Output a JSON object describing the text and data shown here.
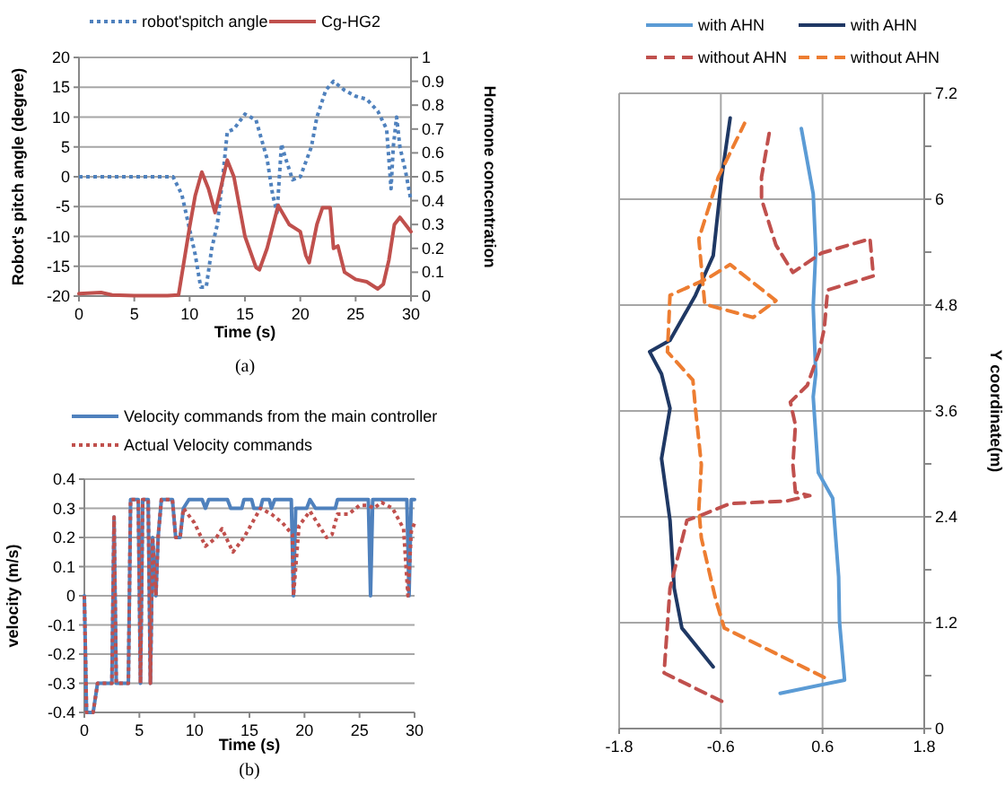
{
  "chart_data": [
    {
      "type": "line",
      "xlabel": "Time (s)",
      "ylabel": "Robot's pitch angle (degree)",
      "y2label": "Hormone concentration",
      "annotations": [
        "(a)"
      ],
      "xlim": [
        0,
        30
      ],
      "xticks": [
        0,
        5,
        10,
        15,
        20,
        25,
        30
      ],
      "ylim": [
        -20,
        20
      ],
      "yticks": [
        -20,
        -15,
        -10,
        -5,
        0,
        5,
        10,
        15,
        20
      ],
      "y2lim": [
        0,
        1
      ],
      "y2ticks": [
        0,
        0.1,
        0.2,
        0.3,
        0.4,
        0.5,
        0.6,
        0.7,
        0.8,
        0.9,
        1
      ],
      "grid": "y",
      "legend": "top",
      "series": [
        {
          "name": "robot'spitch angle",
          "color": "#4f81bd",
          "line_style": "dotted",
          "x": [
            0,
            8.5,
            9.3,
            10.5,
            11,
            11.5,
            12,
            12.5,
            13,
            13.4,
            14,
            15,
            16,
            17,
            17.5,
            17.9,
            18.3,
            18.6,
            19.3,
            20,
            21,
            21.5,
            22.3,
            23,
            24,
            25,
            26,
            27,
            27.8,
            28.2,
            28.4,
            28.7,
            29,
            29.5,
            30
          ],
          "values": [
            0,
            0,
            -3,
            -13,
            -18.5,
            -18.5,
            -12,
            -8,
            0,
            7.5,
            8,
            10.5,
            9.5,
            3,
            -3,
            -6,
            5.5,
            3.5,
            -0.5,
            0,
            5,
            10,
            14.5,
            16,
            14.5,
            13.5,
            13,
            11,
            8,
            -2,
            5,
            10,
            5,
            1,
            -4
          ]
        },
        {
          "name": "Cg-HG2",
          "color": "#c0504d",
          "axis": "y2",
          "line_style": "solid",
          "x": [
            0,
            2,
            3,
            5,
            8,
            9,
            10,
            10.5,
            11.1,
            11.7,
            12.3,
            12.8,
            13.4,
            14,
            15,
            16,
            16.3,
            17,
            18,
            19,
            20,
            20.5,
            20.8,
            21.5,
            22,
            22.7,
            23,
            23.4,
            24,
            25,
            26,
            27,
            27.5,
            28,
            28.5,
            29,
            30
          ],
          "values": [
            0.01,
            0.015,
            0.005,
            0.002,
            0.002,
            0.005,
            0.29,
            0.42,
            0.52,
            0.45,
            0.35,
            0.45,
            0.57,
            0.5,
            0.25,
            0.12,
            0.11,
            0.2,
            0.38,
            0.3,
            0.27,
            0.17,
            0.14,
            0.3,
            0.37,
            0.37,
            0.2,
            0.21,
            0.1,
            0.07,
            0.06,
            0.03,
            0.05,
            0.15,
            0.3,
            0.33,
            0.27
          ]
        }
      ]
    },
    {
      "type": "line",
      "xlabel": "Time (s)",
      "ylabel": "velocity (m/s)",
      "annotations": [
        "(b)"
      ],
      "xlim": [
        0,
        30
      ],
      "xticks": [
        0,
        5,
        10,
        15,
        20,
        25,
        30
      ],
      "ylim": [
        -0.4,
        0.4
      ],
      "yticks": [
        -0.4,
        -0.3,
        -0.2,
        -0.1,
        0,
        0.1,
        0.2,
        0.3,
        0.4
      ],
      "grid": "y",
      "legend": "top",
      "series": [
        {
          "name": "Velocity commands from the main controller",
          "color": "#4f81bd",
          "line_style": "solid",
          "x": [
            0,
            0.2,
            0.8,
            1.2,
            2.5,
            2.7,
            2.9,
            4,
            4.2,
            4.9,
            5.1,
            5.3,
            5.8,
            6,
            6.2,
            6.5,
            6.7,
            7,
            8,
            8.3,
            8.7,
            9,
            9.5,
            10.7,
            11,
            11.3,
            13,
            13.3,
            14.3,
            14.5,
            15.2,
            15.4,
            16,
            16.2,
            16.8,
            17,
            17.3,
            18.8,
            19,
            19.2,
            20.2,
            20.5,
            21,
            22.8,
            23,
            25.8,
            26,
            26.2,
            29.3,
            29.5,
            29.7,
            30
          ],
          "values": [
            0,
            -0.4,
            -0.4,
            -0.3,
            -0.3,
            0.27,
            -0.3,
            -0.3,
            0.33,
            0.33,
            -0.3,
            0.33,
            0.33,
            -0.3,
            0.2,
            0,
            0.2,
            0.33,
            0.33,
            0.2,
            0.2,
            0.3,
            0.33,
            0.33,
            0.3,
            0.33,
            0.33,
            0.3,
            0.3,
            0.33,
            0.33,
            0.3,
            0.3,
            0.33,
            0.33,
            0.3,
            0.33,
            0.33,
            0,
            0.3,
            0.3,
            0.33,
            0.3,
            0.3,
            0.33,
            0.33,
            0,
            0.33,
            0.33,
            0,
            0.33,
            0.33
          ]
        },
        {
          "name": "Actual Velocity commands",
          "color": "#c0504d",
          "line_style": "dotted",
          "x": [
            0,
            0.2,
            0.8,
            1.2,
            2.5,
            2.7,
            2.9,
            4,
            4.2,
            4.9,
            5.1,
            5.3,
            5.8,
            6,
            6.2,
            6.5,
            6.7,
            7,
            8,
            8.3,
            8.7,
            9,
            10,
            11,
            12,
            12.5,
            13.5,
            14.5,
            16,
            17,
            18,
            18.9,
            19,
            19.5,
            20.5,
            21,
            22,
            22.5,
            23,
            24,
            25,
            25.8,
            26.3,
            27,
            28,
            29,
            29.4,
            29.7,
            30
          ],
          "values": [
            0,
            -0.4,
            -0.4,
            -0.3,
            -0.3,
            0.27,
            -0.3,
            -0.3,
            0.33,
            0.33,
            -0.3,
            0.33,
            0.33,
            -0.3,
            0.2,
            0,
            0.2,
            0.33,
            0.33,
            0.2,
            0.2,
            0.3,
            0.25,
            0.17,
            0.2,
            0.23,
            0.15,
            0.2,
            0.3,
            0.28,
            0.25,
            0.21,
            0,
            0.24,
            0.29,
            0.26,
            0.2,
            0.21,
            0.28,
            0.28,
            0.31,
            0.31,
            0.3,
            0.32,
            0.3,
            0.23,
            0,
            0.22,
            0.25
          ]
        }
      ]
    },
    {
      "type": "line",
      "y2label": "Y coordinate(m)",
      "xlim": [
        -1.8,
        1.8
      ],
      "xticks": [
        -1.8,
        -0.6,
        0.6,
        1.8
      ],
      "y2lim": [
        0,
        7.2
      ],
      "y2ticks": [
        0,
        {
          "value": 0.6,
          "label": null
        },
        1.2,
        {
          "value": 1.8,
          "label": null
        },
        2.4,
        {
          "value": 3,
          "label": null
        },
        3.6,
        {
          "value": 4.2,
          "label": null
        },
        4.8,
        {
          "value": 5.4,
          "label": null
        },
        6,
        {
          "value": 6.6,
          "label": null
        },
        7.2
      ],
      "grid": true,
      "legend": "top",
      "series": [
        {
          "name": "with AHN",
          "color": "#5b9bd5",
          "line_style": "solid",
          "axis": "y2",
          "x": [
            0.1,
            0.86,
            0.8,
            0.79,
            0.72,
            0.55,
            0.49,
            0.52,
            0.49,
            0.52,
            0.49,
            0.35
          ],
          "values": [
            0.4,
            0.55,
            1.21,
            1.72,
            2.61,
            2.9,
            3.76,
            4.02,
            4.78,
            5.42,
            6.06,
            6.8
          ]
        },
        {
          "name": "with AHN",
          "color": "#1f3864",
          "line_style": "solid",
          "axis": "y2",
          "x": [
            -0.69,
            -1.06,
            -1.15,
            -1.2,
            -1.3,
            -1.2,
            -1.3,
            -1.44,
            -1.2,
            -0.9,
            -0.69,
            -0.59,
            -0.49
          ],
          "values": [
            0.7,
            1.14,
            1.59,
            2.36,
            3.06,
            3.63,
            4.02,
            4.27,
            4.4,
            4.91,
            5.36,
            6.25,
            6.92
          ]
        },
        {
          "name": "without AHN",
          "color": "#c0504d",
          "line_style": "dashed",
          "axis": "y2",
          "x": [
            -0.59,
            -1.27,
            -1.2,
            -1.06,
            -1,
            -0.83,
            -0.49,
            0.18,
            0.45,
            0.28,
            0.25,
            0.28,
            0.22,
            0.42,
            0.56,
            0.62,
            0.66,
            1.2,
            1.16,
            0.59,
            0.25,
            0.05,
            -0.12,
            -0.12,
            -0.02
          ],
          "values": [
            0.31,
            0.63,
            1.59,
            2.13,
            2.36,
            2.42,
            2.55,
            2.58,
            2.64,
            2.68,
            2.99,
            3.44,
            3.7,
            3.89,
            4.27,
            4.53,
            4.97,
            5.13,
            5.55,
            5.39,
            5.17,
            5.48,
            6,
            6.25,
            6.8
          ]
        },
        {
          "name": "without AHN",
          "color": "#ed7d31",
          "line_style": "dashed",
          "axis": "y2",
          "x": [
            0.62,
            -0.56,
            -0.66,
            -0.83,
            -0.86,
            -0.83,
            -0.9,
            -0.93,
            -1.23,
            -1.2,
            -0.76,
            -0.49,
            0.05,
            -0.22,
            -0.79,
            -0.86,
            -0.63,
            -0.32
          ],
          "values": [
            0.58,
            1.14,
            1.46,
            2.16,
            2.48,
            2.99,
            3.63,
            3.95,
            4.27,
            4.91,
            5.1,
            5.26,
            4.85,
            4.66,
            4.81,
            5.55,
            6.25,
            6.86
          ]
        }
      ]
    }
  ]
}
